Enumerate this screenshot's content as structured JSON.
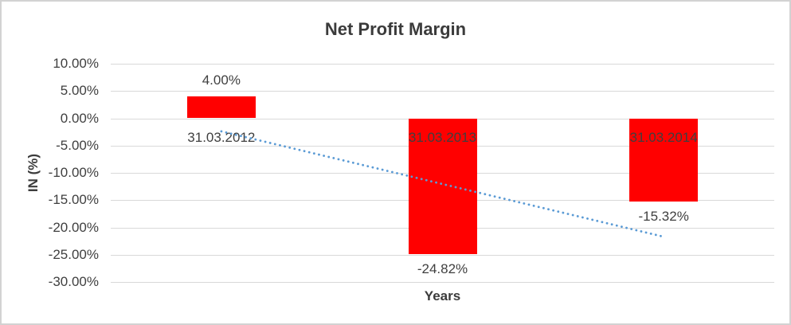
{
  "frame": {
    "background": "#ffffff",
    "border_color": "#d2d2d2"
  },
  "chart_data": {
    "type": "bar",
    "title": "Net Profit Margin",
    "categories": [
      "31.03.2012",
      "31.03.2013",
      "31.03.2014"
    ],
    "values": [
      4.0,
      -24.82,
      -15.32
    ],
    "data_labels": [
      "4.00%",
      "-24.82%",
      "-15.32%"
    ],
    "xlabel": "Years",
    "ylabel": "IN (%)",
    "ylim": [
      -30,
      10
    ],
    "ytick_step": 5,
    "yticks": [
      "10.00%",
      "5.00%",
      "0.00%",
      "-5.00%",
      "-10.00%",
      "-15.00%",
      "-20.00%",
      "-25.00%",
      "-30.00%"
    ],
    "grid": true,
    "legend": false,
    "bar_color": "#FF0000",
    "text_color": "#3f3f3f",
    "gridline_color": "#d9d9d9",
    "trendline": {
      "style": "dotted",
      "color": "#5B9BD5",
      "start_pct": -2.39,
      "end_pct": -21.71
    }
  }
}
